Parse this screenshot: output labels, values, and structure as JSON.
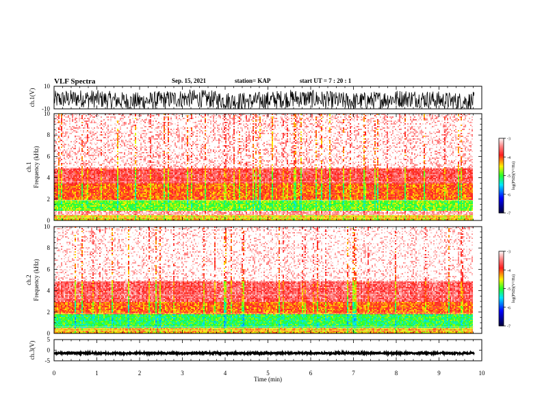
{
  "header": {
    "title": "VLF Spectra",
    "date": "Sep. 15, 2021",
    "station": "station= KAP",
    "start": "start  UT =   7 : 20 : 1"
  },
  "colors": {
    "palette": [
      "#ffffff",
      "#ff8080",
      "#ff2020",
      "#ffff00",
      "#00ff00",
      "#00ffff",
      "#0000ff",
      "#000040"
    ]
  },
  "chart_data": [
    {
      "type": "line",
      "panel": "ch1-waveform",
      "ylabel": "ch.1(V)",
      "ylim": [
        -10,
        10
      ],
      "ytick_labels": [
        "10",
        "-10"
      ],
      "description_values": {
        "typical_range": [
          -10,
          10
        ]
      }
    },
    {
      "type": "heatmap",
      "panel": "ch1-spectrogram",
      "ylabel_line1": "ch.1",
      "ylabel_line2": "Frequency  (kHz)",
      "ylim": [
        0,
        10
      ],
      "yticks": [
        0,
        2,
        4,
        6,
        8,
        10
      ],
      "colorbar": {
        "label": "log(PSD)(V²/Hz)",
        "range": [
          -7,
          -3
        ],
        "ticks": [
          "-3",
          "-4",
          "-5",
          "-6",
          "-7"
        ]
      },
      "bands_khz": [
        {
          "from": 0.0,
          "to": 0.6,
          "level": -4.5
        },
        {
          "from": 1.0,
          "to": 2.0,
          "level": -4.9
        },
        {
          "from": 2.0,
          "to": 3.5,
          "level": -4.2
        },
        {
          "from": 3.5,
          "to": 5.0,
          "level": -3.8
        },
        {
          "from": 5.0,
          "to": 10.0,
          "level": -3.3
        }
      ]
    },
    {
      "type": "heatmap",
      "panel": "ch2-spectrogram",
      "ylabel_line1": "ch.2",
      "ylabel_line2": "Frequency  (kHz)",
      "ylim": [
        0,
        10
      ],
      "yticks": [
        0,
        2,
        4,
        6,
        8,
        10
      ],
      "colorbar": {
        "label": "log(PSD)(V²/Hz)",
        "range": [
          -7,
          -3
        ],
        "ticks": [
          "-3",
          "-4",
          "-5",
          "-6",
          "-7"
        ]
      },
      "bands_khz": [
        {
          "from": 0.0,
          "to": 0.6,
          "level": -4.4
        },
        {
          "from": 0.6,
          "to": 1.8,
          "level": -5.1
        },
        {
          "from": 1.8,
          "to": 3.0,
          "level": -4.2
        },
        {
          "from": 3.0,
          "to": 5.0,
          "level": -3.7
        },
        {
          "from": 5.0,
          "to": 10.0,
          "level": -3.2
        }
      ]
    },
    {
      "type": "line",
      "panel": "ch3-waveform",
      "ylabel": "ch.3(V)",
      "ylim": [
        -5,
        5
      ],
      "ytick_labels": [
        "5",
        "0",
        "-5"
      ],
      "description_values": {
        "typical_range": [
          -2,
          -1
        ]
      }
    }
  ],
  "xaxis": {
    "xlabel": "Time  (min)",
    "xlim": [
      0,
      10
    ],
    "xticks": [
      "0",
      "1",
      "2",
      "3",
      "4",
      "5",
      "6",
      "7",
      "8",
      "9",
      "10"
    ],
    "data_end": 9.82
  }
}
